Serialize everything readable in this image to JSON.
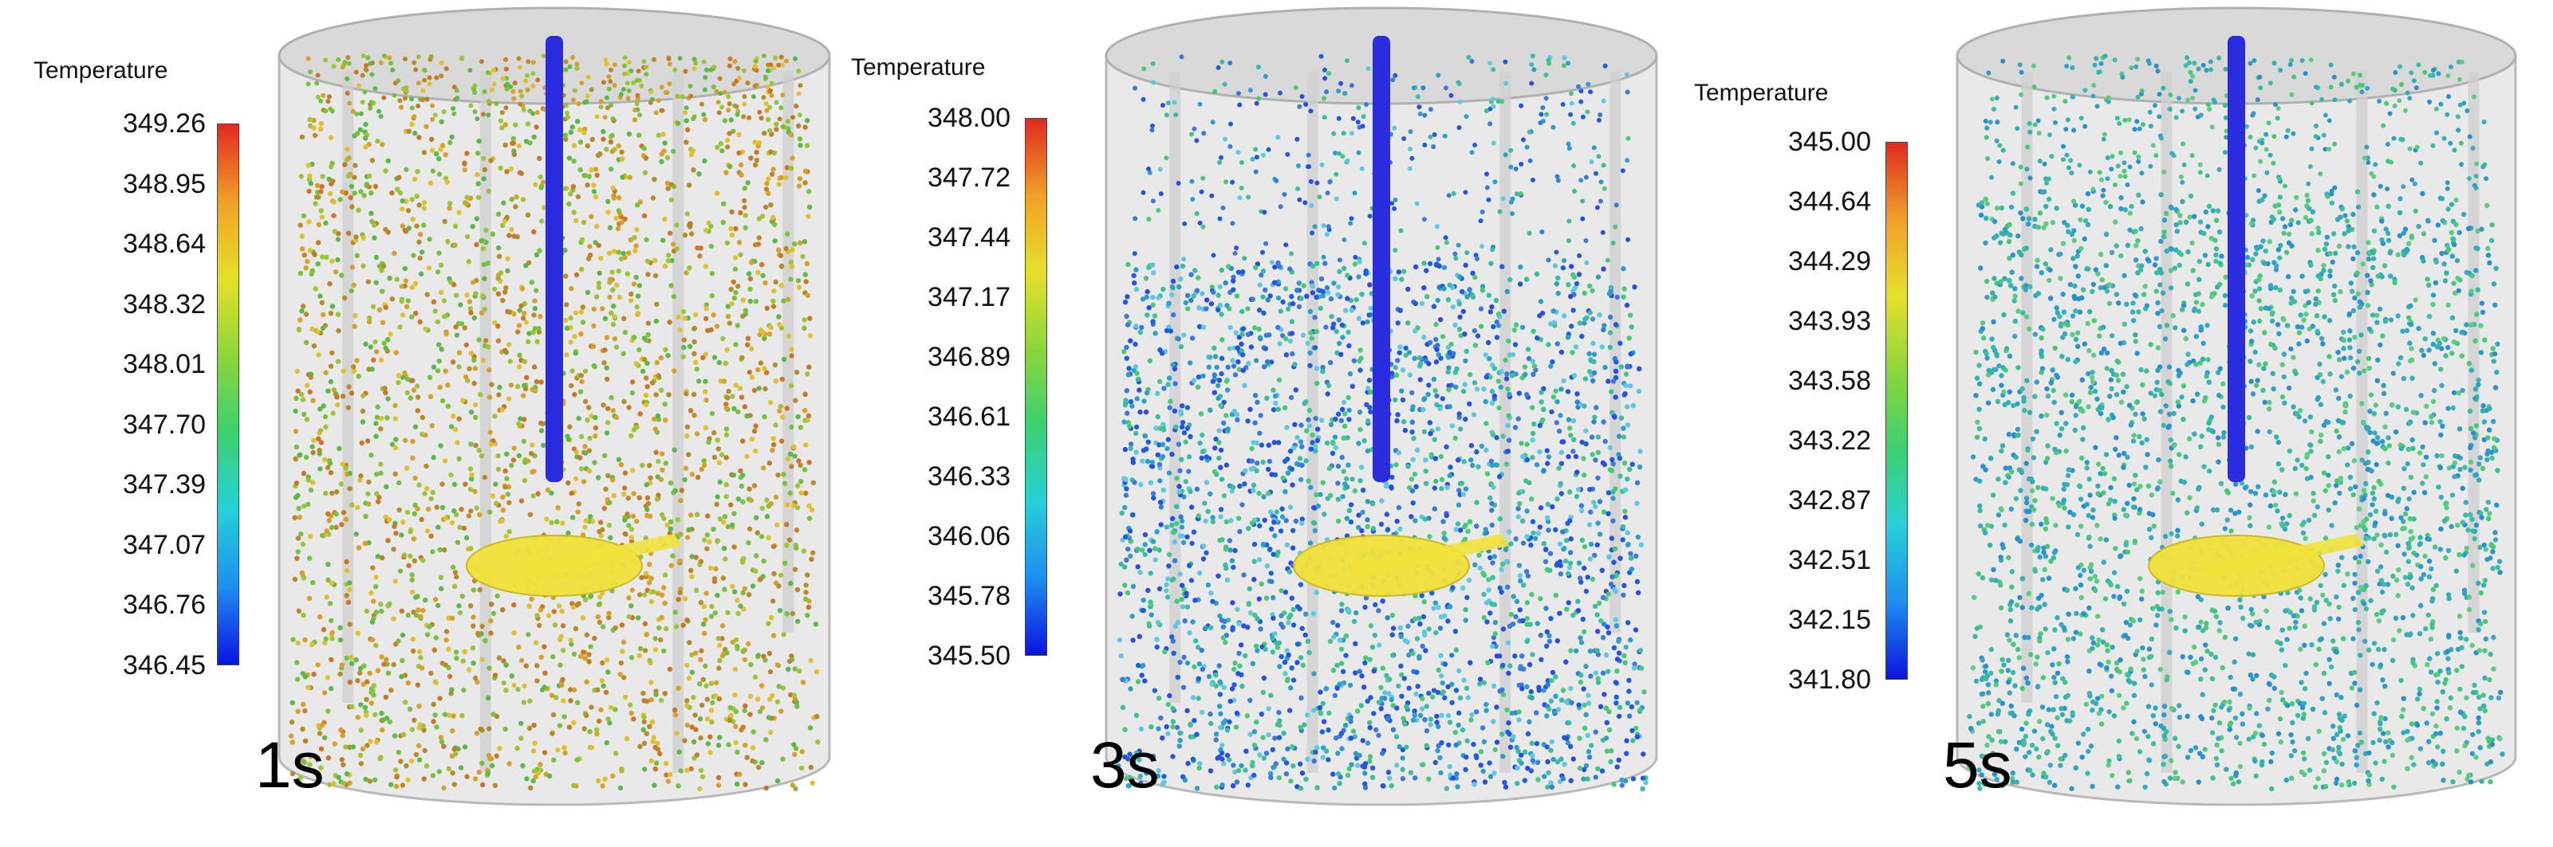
{
  "panels": [
    {
      "legend_title": "Temperature",
      "ticks": [
        "349.26",
        "348.95",
        "348.64",
        "348.32",
        "348.01",
        "347.70",
        "347.39",
        "347.07",
        "346.76",
        "346.45"
      ],
      "time_label": "1s",
      "colors": {
        "particle_palette": [
          "#d8a02a",
          "#c87828",
          "#9cc43a",
          "#5cb84a",
          "#e0c030",
          "#b88a2c",
          "#78c040"
        ],
        "impeller": "#f2e23a",
        "shaft": "#2b2be0"
      }
    },
    {
      "legend_title": "Temperature",
      "ticks": [
        "348.00",
        "347.72",
        "347.44",
        "347.17",
        "346.89",
        "346.61",
        "346.33",
        "346.06",
        "345.78",
        "345.50"
      ],
      "time_label": "3s",
      "colors": {
        "particle_palette": [
          "#2e9ec8",
          "#3a7ad8",
          "#2a4ee0",
          "#3cbca0",
          "#48c878",
          "#1e5ed8",
          "#5fc8e0"
        ],
        "impeller": "#f2e23a",
        "shaft": "#2b2be0"
      }
    },
    {
      "legend_title": "Temperature",
      "ticks": [
        "345.00",
        "344.64",
        "344.29",
        "343.93",
        "343.58",
        "343.22",
        "342.87",
        "342.51",
        "342.15",
        "341.80"
      ],
      "time_label": "5s",
      "colors": {
        "particle_palette": [
          "#3cbca0",
          "#34b0b0",
          "#48c878",
          "#2e9ec8",
          "#5ccc80",
          "#3aa8c0",
          "#2a8ed0"
        ],
        "impeller": "#f2e23a",
        "shaft": "#2b2be0"
      }
    }
  ],
  "colorbar_gradient": [
    "#0a14e0",
    "#1e8ef0",
    "#26d0d8",
    "#3cd070",
    "#8cd63a",
    "#e6e02a",
    "#f0a028",
    "#e02a20"
  ]
}
